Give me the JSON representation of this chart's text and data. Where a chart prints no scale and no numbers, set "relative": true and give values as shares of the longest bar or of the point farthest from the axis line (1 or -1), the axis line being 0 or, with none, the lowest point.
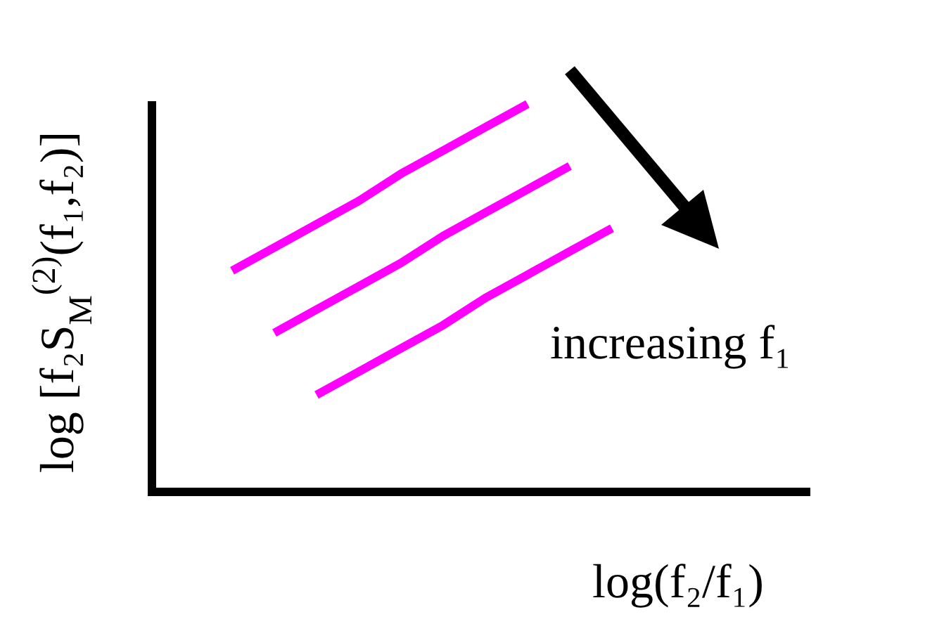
{
  "chart_data": {
    "type": "line",
    "relative": true,
    "xlabel": "log(f₂/f₁)",
    "ylabel": "log [f₂S$_{M}$$^{(2)}$(f₁,f₂)]",
    "categories": [
      null,
      null,
      null,
      null,
      null,
      null,
      null,
      null,
      null,
      null
    ],
    "series": [
      {
        "color": "#ff00ff",
        "values": [
          0.57,
          0.63,
          0.69,
          0.75,
          0.82,
          0.88,
          0.94,
          1.0,
          null,
          null
        ]
      },
      {
        "color": "#ff00ff",
        "values": [
          null,
          0.41,
          0.47,
          0.53,
          0.59,
          0.66,
          0.72,
          0.78,
          0.84,
          null
        ]
      },
      {
        "color": "#ff00ff",
        "values": [
          null,
          null,
          0.25,
          0.31,
          0.37,
          0.43,
          0.5,
          0.56,
          0.62,
          0.68
        ]
      }
    ],
    "annotations": [
      "increasing f₁"
    ],
    "marker": "none",
    "line_style": "solid"
  }
}
